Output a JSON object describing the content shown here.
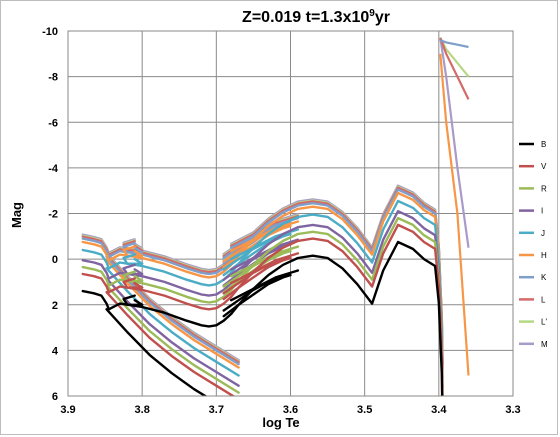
{
  "chart_data": {
    "type": "line",
    "title": "Z=0.019   t=1.3x10⁹yr",
    "title_parts": {
      "base": "Z=0.019   t=1.3x10",
      "exponent": "9",
      "suffix": "yr"
    },
    "xlabel": "log Te",
    "ylabel": "Mag",
    "xlim": [
      3.9,
      3.3
    ],
    "ylim": [
      6,
      -10
    ],
    "x_reversed": true,
    "y_reversed": true,
    "xticks": [
      3.9,
      3.8,
      3.7,
      3.6,
      3.5,
      3.4,
      3.3
    ],
    "xtick_labels": [
      "3.9",
      "3.8",
      "3.7",
      "3.6",
      "3.5",
      "3.4",
      "3.3"
    ],
    "yticks": [
      -10,
      -8,
      -6,
      -4,
      -2,
      0,
      2,
      4,
      6
    ],
    "ytick_labels": [
      "-10",
      "-8",
      "-6",
      "-4",
      "-2",
      "0",
      "2",
      "4",
      "6"
    ],
    "grid": true,
    "legend_position": "right",
    "series": [
      {
        "name": "B",
        "color": "#000000",
        "offset": 0.0
      },
      {
        "name": "V",
        "color": "#c0504d",
        "offset": -0.75
      },
      {
        "name": "R",
        "color": "#9bbb59",
        "offset": -1.05
      },
      {
        "name": "I",
        "color": "#8064a2",
        "offset": -1.35
      },
      {
        "name": "J",
        "color": "#4bacc6",
        "offset": -1.8
      },
      {
        "name": "H",
        "color": "#f79646",
        "offset": -2.15
      },
      {
        "name": "K",
        "color": "#7f9fca",
        "offset": -2.3
      },
      {
        "name": "L",
        "color": "#d46a6a",
        "offset": -2.38
      },
      {
        "name": "L'",
        "color": "#b6d884",
        "offset": -2.42
      },
      {
        "name": "M",
        "color": "#a99bc9",
        "offset": -2.47
      }
    ],
    "base_curve": {
      "ms_x": [
        3.88,
        3.865,
        3.855,
        3.852,
        3.848,
        3.845
      ],
      "ms_y": [
        1.4,
        1.5,
        1.6,
        1.75,
        1.95,
        2.2
      ],
      "lower_x": [
        3.848,
        3.82,
        3.79,
        3.76,
        3.73,
        3.7,
        3.67
      ],
      "lower_y": [
        2.2,
        3.2,
        4.2,
        5.0,
        5.7,
        6.3,
        6.9
      ],
      "sg_x": [
        3.845,
        3.83,
        3.8,
        3.77,
        3.74,
        3.72,
        3.71,
        3.7,
        3.69,
        3.68
      ],
      "sg_y": [
        2.2,
        1.95,
        2.1,
        2.35,
        2.7,
        2.9,
        2.95,
        2.9,
        2.7,
        2.4
      ],
      "hook_x": [
        3.81,
        3.8,
        3.82,
        3.825,
        3.81
      ],
      "hook_y": [
        1.8,
        2.0,
        2.0,
        1.75,
        1.6
      ],
      "rgb_x": [
        3.68,
        3.67,
        3.65,
        3.63,
        3.61,
        3.59,
        3.57,
        3.55,
        3.53,
        3.51,
        3.49,
        3.475,
        3.455,
        3.435,
        3.42,
        3.405,
        3.4,
        3.398,
        3.396,
        3.395
      ],
      "rgb_y": [
        2.4,
        2.0,
        1.3,
        0.7,
        0.25,
        -0.05,
        -0.15,
        -0.05,
        0.4,
        1.1,
        1.95,
        0.5,
        -0.75,
        -0.45,
        0.0,
        0.3,
        1.9,
        3.5,
        5.0,
        7.0
      ],
      "rc_x": [
        3.69,
        3.67,
        3.65,
        3.63,
        3.61,
        3.6,
        3.61,
        3.63,
        3.65,
        3.67,
        3.69
      ],
      "rc_y": [
        2.5,
        2.0,
        1.55,
        1.1,
        0.8,
        0.7,
        0.75,
        1.0,
        1.35,
        1.8,
        2.25
      ],
      "rc2_x": [
        3.68,
        3.65,
        3.62,
        3.59
      ],
      "rc2_y": [
        1.8,
        1.3,
        0.8,
        0.5
      ]
    },
    "tip": {
      "x": [
        3.398,
        3.39,
        3.375,
        3.36
      ],
      "band_index_from": 6,
      "y_by_series": {
        "K": [
          -9.6,
          -9.5,
          -9.4,
          -9.3
        ],
        "L": [
          -9.7,
          -9.0,
          -8.0,
          -7.0
        ],
        "L'": [
          -9.7,
          -9.2,
          -8.6,
          -8.0
        ],
        "M": [
          -9.7,
          -8.0,
          -4.0,
          -0.5
        ],
        "H": [
          -9.0,
          -6.0,
          -2.0,
          5.1
        ]
      }
    }
  }
}
